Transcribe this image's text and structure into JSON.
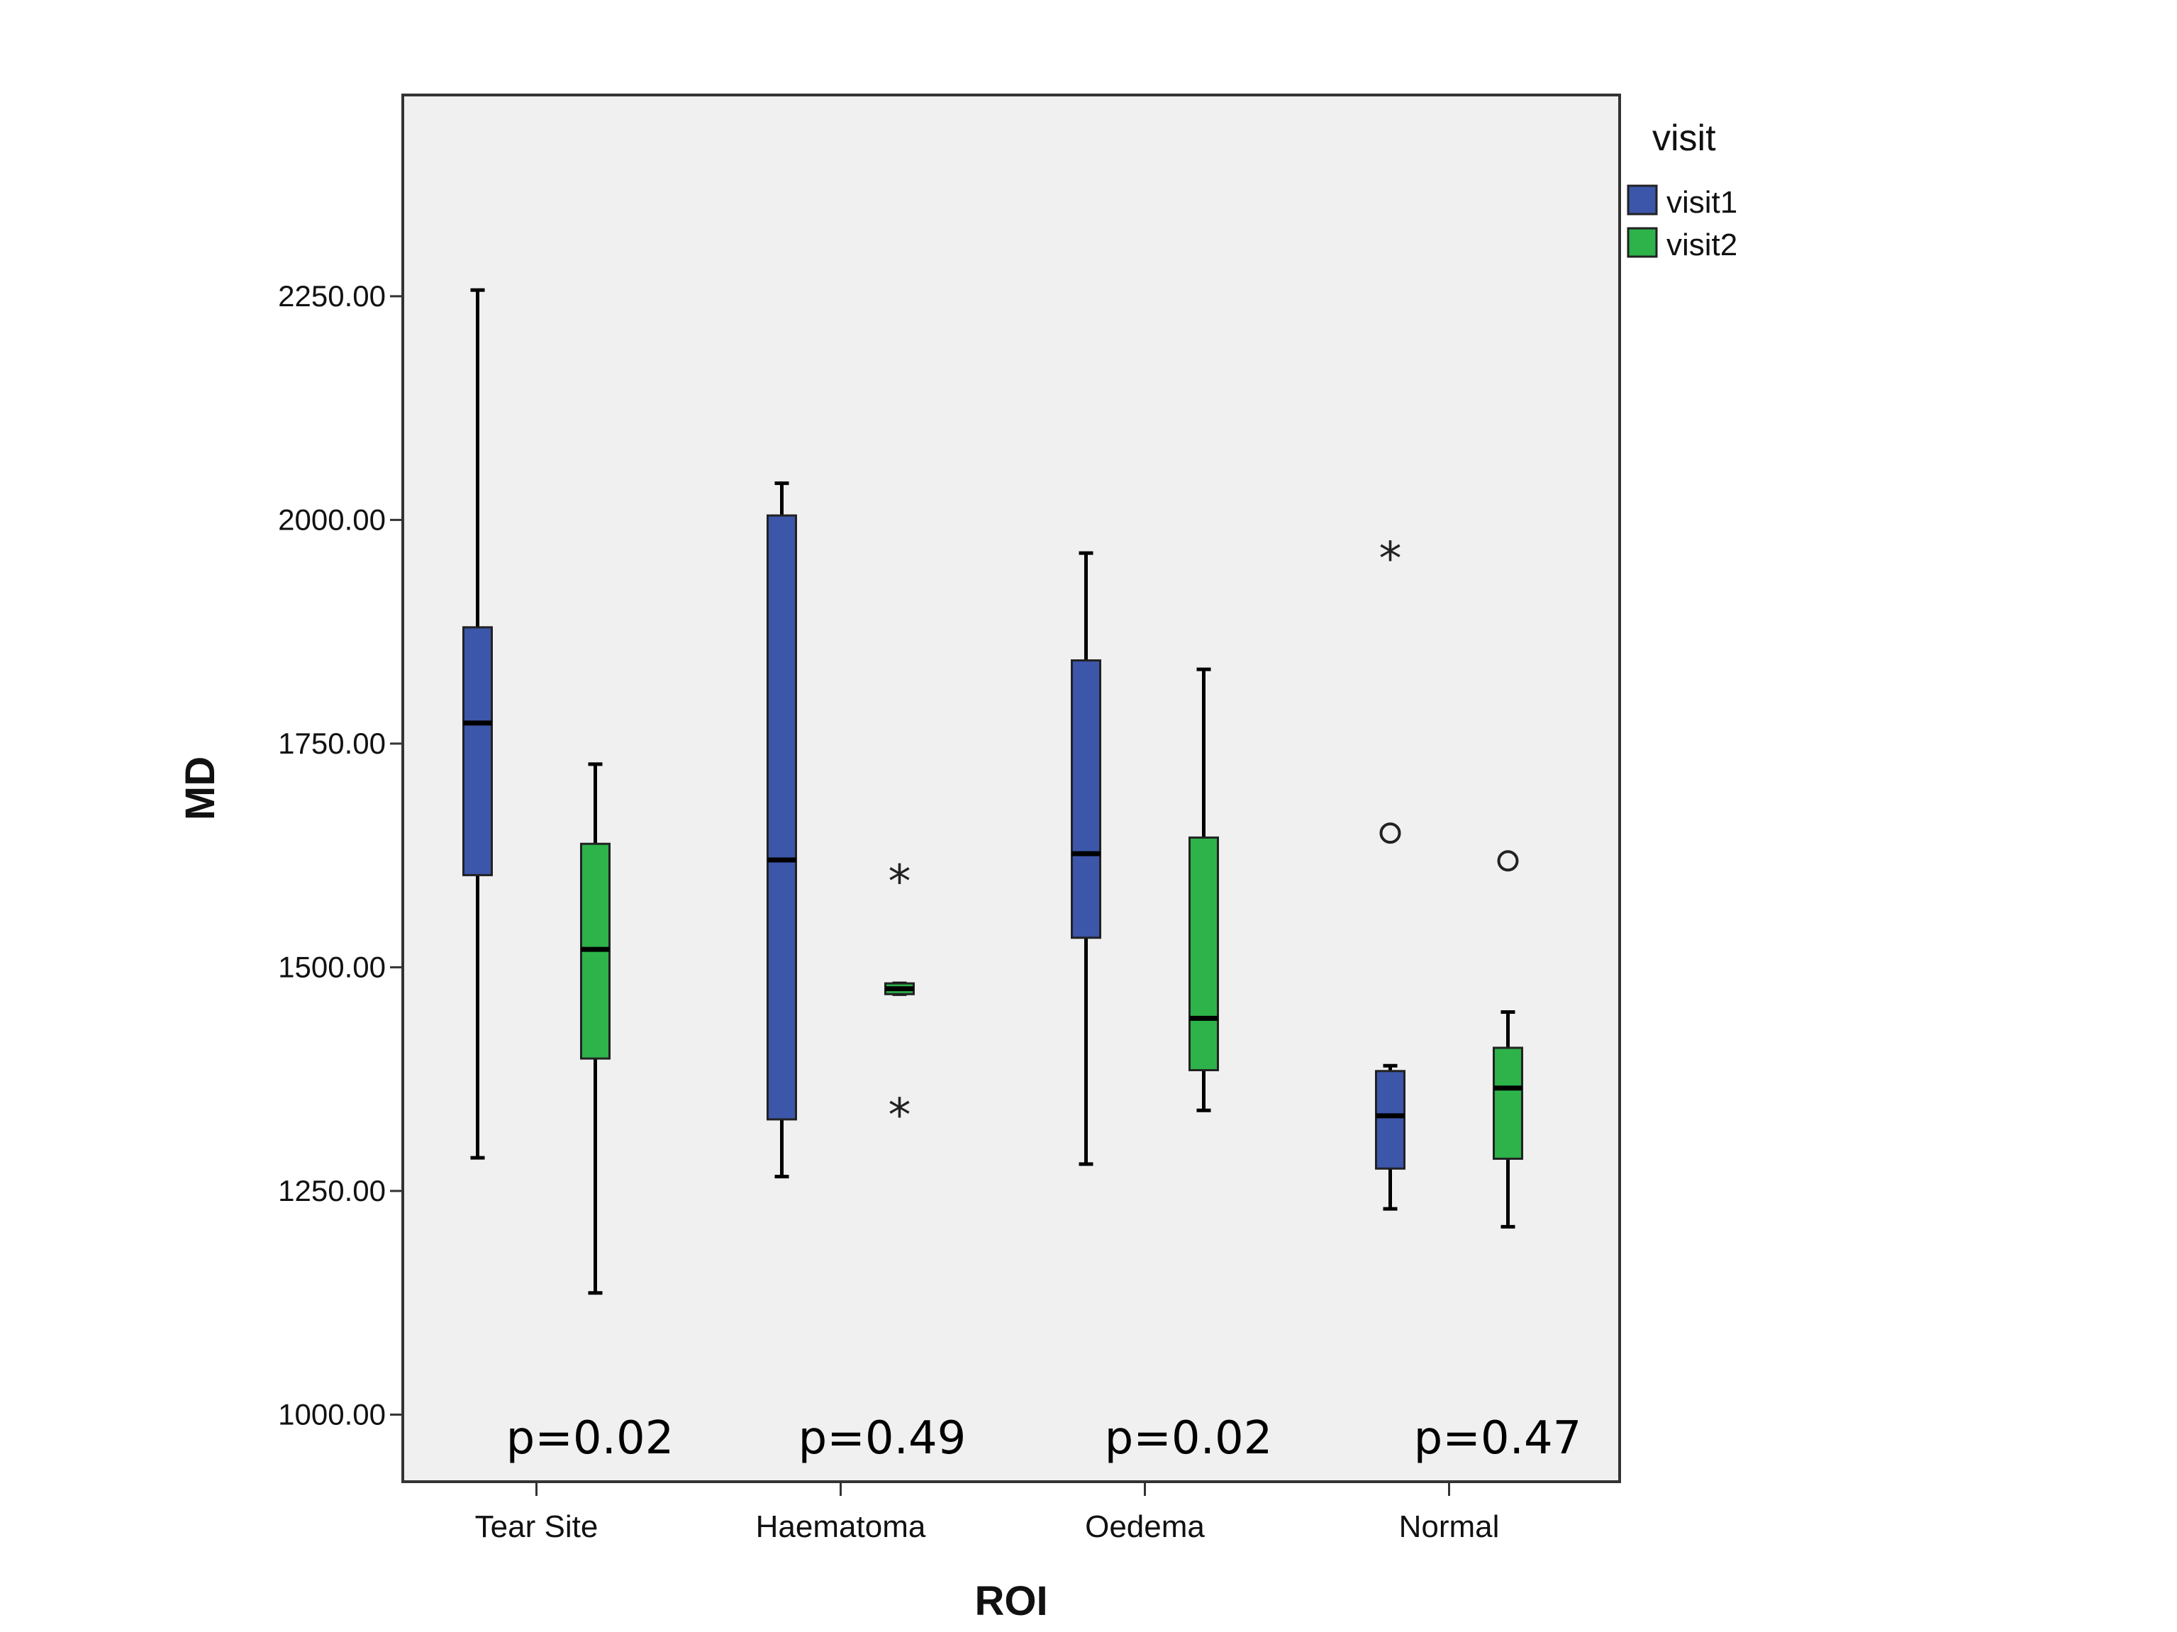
{
  "chart_data": {
    "type": "box",
    "xlabel": "ROI",
    "ylabel": "MD",
    "ylim": [
      925,
      2475
    ],
    "yticks": [
      1000,
      1250,
      1500,
      1750,
      2000,
      2250
    ],
    "ytick_labels": [
      "1000.00",
      "1250.00",
      "1500.00",
      "1750.00",
      "2000.00",
      "2250.00"
    ],
    "categories": [
      "Tear Site",
      "Haematoma",
      "Oedema",
      "Normal"
    ],
    "legend": {
      "title": "visit",
      "entries": [
        {
          "name": "visit1",
          "color": "#3c56aa"
        },
        {
          "name": "visit2",
          "color": "#2db34a"
        }
      ]
    },
    "annotations": [
      "p=0.02",
      "p=0.49",
      "p=0.02",
      "p=0.47"
    ],
    "series": [
      {
        "name": "visit1",
        "color": "#3c56aa",
        "boxes": [
          {
            "whisker_low": 1287,
            "q1": 1603,
            "median": 1773,
            "q3": 1880,
            "whisker_high": 2257,
            "outliers": [],
            "extremes": []
          },
          {
            "whisker_low": 1266,
            "q1": 1330,
            "median": 1620,
            "q3": 2005,
            "whisker_high": 2041,
            "outliers": [],
            "extremes": []
          },
          {
            "whisker_low": 1280,
            "q1": 1533,
            "median": 1627,
            "q3": 1843,
            "whisker_high": 1963,
            "outliers": [],
            "extremes": []
          },
          {
            "whisker_low": 1230,
            "q1": 1275,
            "median": 1334,
            "q3": 1384,
            "whisker_high": 1390,
            "outliers": [
              1650
            ],
            "extremes": [
              1963
            ]
          }
        ]
      },
      {
        "name": "visit2",
        "color": "#2db34a",
        "boxes": [
          {
            "whisker_low": 1136,
            "q1": 1398,
            "median": 1520,
            "q3": 1638,
            "whisker_high": 1727,
            "outliers": [],
            "extremes": []
          },
          {
            "whisker_low": 1470,
            "q1": 1470,
            "median": 1476,
            "q3": 1482,
            "whisker_high": 1482,
            "outliers": [],
            "extremes": [
              1602,
              1341
            ]
          },
          {
            "whisker_low": 1340,
            "q1": 1385,
            "median": 1443,
            "q3": 1645,
            "whisker_high": 1833,
            "outliers": [],
            "extremes": []
          },
          {
            "whisker_low": 1210,
            "q1": 1286,
            "median": 1365,
            "q3": 1410,
            "whisker_high": 1450,
            "outliers": [
              1619
            ],
            "extremes": []
          }
        ]
      }
    ],
    "grid": false,
    "legend_position": "outside-right-top"
  }
}
